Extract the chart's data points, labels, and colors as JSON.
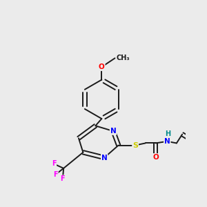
{
  "background_color": "#ebebeb",
  "atom_colors": {
    "N": "#0000ff",
    "O": "#ff0000",
    "S": "#cccc00",
    "F": "#ff00ff",
    "H": "#008b8b",
    "C": "#1a1a1a"
  },
  "bond_color": "#1a1a1a",
  "lw": 1.4
}
